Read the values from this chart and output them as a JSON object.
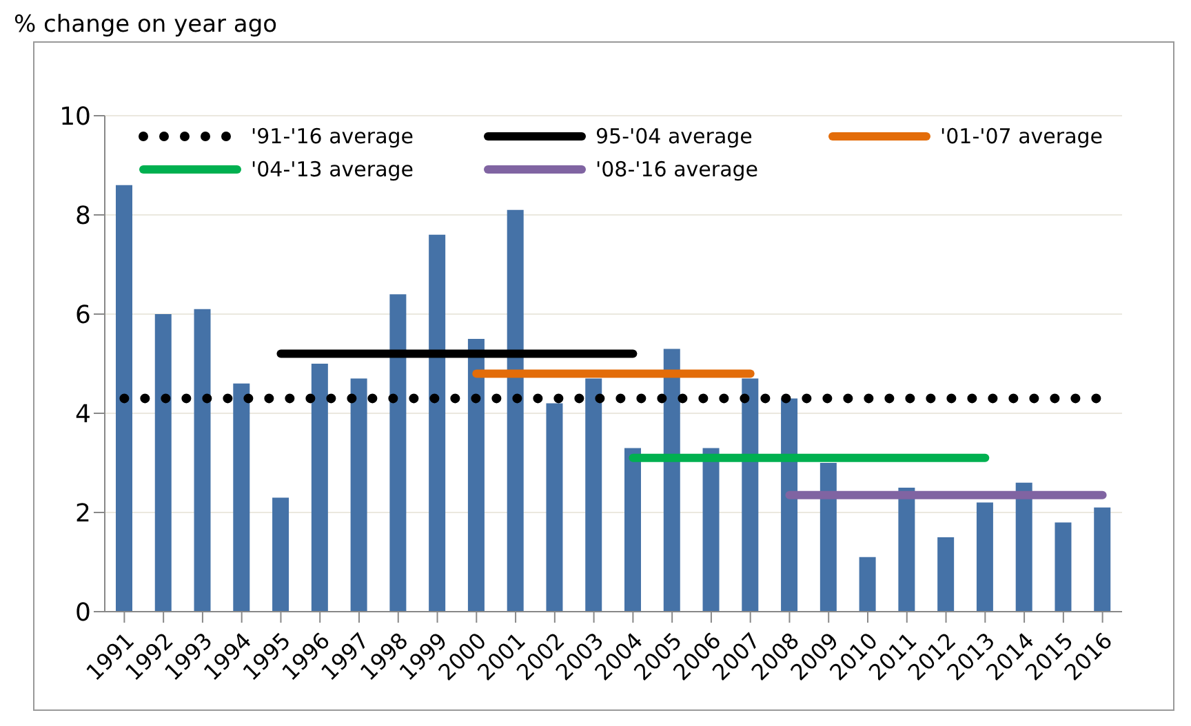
{
  "chart_data": {
    "type": "bar",
    "title": "% change on year ago",
    "categories": [
      "1991",
      "1992",
      "1993",
      "1994",
      "1995",
      "1996",
      "1997",
      "1998",
      "1999",
      "2000",
      "2001",
      "2002",
      "2003",
      "2004",
      "2005",
      "2006",
      "2007",
      "2008",
      "2009",
      "2010",
      "2011",
      "2012",
      "2013",
      "2014",
      "2015",
      "2016"
    ],
    "series": [
      {
        "color": "#4572a7",
        "values": [
          8.6,
          6.0,
          6.1,
          4.6,
          2.3,
          5.0,
          4.7,
          6.4,
          7.6,
          5.5,
          8.1,
          4.2,
          4.7,
          3.3,
          5.3,
          3.3,
          4.7,
          4.3,
          3.0,
          1.1,
          2.5,
          1.5,
          2.2,
          2.6,
          1.8,
          2.1
        ]
      },
      {
        "type": "line",
        "name": "'91-'16 average",
        "color": "#000000",
        "line_style": "dotted",
        "values": [
          4.3,
          4.3,
          4.3,
          4.3,
          4.3,
          4.3,
          4.3,
          4.3,
          4.3,
          4.3,
          4.3,
          4.3,
          4.3,
          4.3,
          4.3,
          4.3,
          4.3,
          4.3,
          4.3,
          4.3,
          4.3,
          4.3,
          4.3,
          4.3,
          4.3,
          4.3
        ]
      },
      {
        "type": "line",
        "name": "95-'04 average",
        "color": "#000000",
        "line_style": "solid",
        "values": [
          null,
          null,
          null,
          null,
          5.2,
          5.2,
          5.2,
          5.2,
          5.2,
          5.2,
          5.2,
          5.2,
          5.2,
          5.2,
          null,
          null,
          null,
          null,
          null,
          null,
          null,
          null,
          null,
          null,
          null,
          null
        ]
      },
      {
        "type": "line",
        "name": "'01-'07 average",
        "color": "#e36c09",
        "line_style": "solid",
        "values": [
          null,
          null,
          null,
          null,
          null,
          null,
          null,
          null,
          null,
          4.8,
          4.8,
          4.8,
          4.8,
          4.8,
          4.8,
          4.8,
          4.8,
          null,
          null,
          null,
          null,
          null,
          null,
          null,
          null,
          null
        ]
      },
      {
        "type": "line",
        "name": "'04-'13 average",
        "color": "#00b050",
        "line_style": "solid",
        "values": [
          null,
          null,
          null,
          null,
          null,
          null,
          null,
          null,
          null,
          null,
          null,
          null,
          null,
          3.1,
          3.1,
          3.1,
          3.1,
          3.1,
          3.1,
          3.1,
          3.1,
          3.1,
          3.1,
          null,
          null,
          null
        ]
      },
      {
        "type": "line",
        "name": "'08-'16 average",
        "color": "#8064a2",
        "line_style": "solid",
        "values": [
          null,
          null,
          null,
          null,
          null,
          null,
          null,
          null,
          null,
          null,
          null,
          null,
          null,
          null,
          null,
          null,
          null,
          2.35,
          2.35,
          2.35,
          2.35,
          2.35,
          2.35,
          2.35,
          2.35,
          2.35
        ]
      }
    ],
    "ylim": [
      0,
      10
    ],
    "yticks": [
      0,
      2,
      4,
      6,
      8,
      10
    ],
    "grid": "y",
    "legend": "top",
    "marker": "none"
  }
}
